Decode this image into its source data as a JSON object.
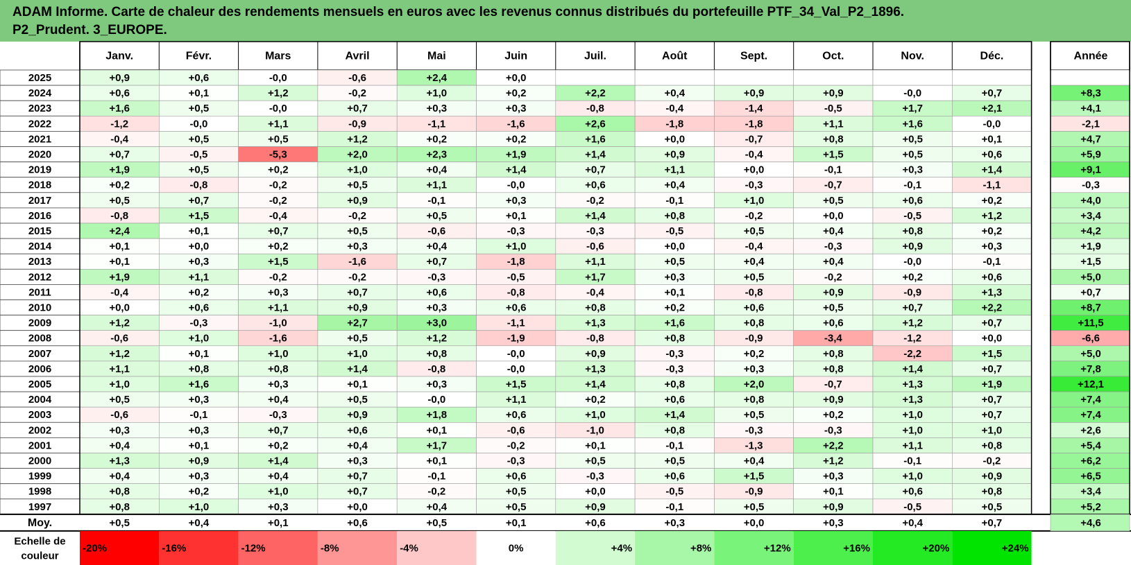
{
  "title_line1": "ADAM Informe. Carte de chaleur des rendements mensuels en euros avec les revenus connus distribués du portefeuille PTF_34_Val_P2_1896.",
  "title_line2": "P2_Prudent. 3_EUROPE.",
  "chart_data": {
    "type": "heatmap",
    "months": [
      "Janv.",
      "Févr.",
      "Mars",
      "Avril",
      "Mai",
      "Juin",
      "Juil.",
      "Août",
      "Sept.",
      "Oct.",
      "Nov.",
      "Déc."
    ],
    "annual_label": "Année",
    "rows": [
      {
        "year": "2025",
        "values": [
          "+0,9",
          "+0,6",
          "-0,0",
          "-0,6",
          "+2,4",
          "+0,0",
          "",
          "",
          "",
          "",
          "",
          ""
        ],
        "annual": ""
      },
      {
        "year": "2024",
        "values": [
          "+0,6",
          "+0,1",
          "+1,2",
          "-0,2",
          "+1,0",
          "+0,2",
          "+2,2",
          "+0,4",
          "+0,9",
          "+0,9",
          "-0,0",
          "+0,7"
        ],
        "annual": "+8,3"
      },
      {
        "year": "2023",
        "values": [
          "+1,6",
          "+0,5",
          "-0,0",
          "+0,7",
          "+0,3",
          "+0,3",
          "-0,8",
          "-0,4",
          "-1,4",
          "-0,5",
          "+1,7",
          "+2,1"
        ],
        "annual": "+4,1"
      },
      {
        "year": "2022",
        "values": [
          "-1,2",
          "-0,0",
          "+1,1",
          "-0,9",
          "-1,1",
          "-1,6",
          "+2,6",
          "-1,8",
          "-1,8",
          "+1,1",
          "+1,6",
          "-0,0"
        ],
        "annual": "-2,1"
      },
      {
        "year": "2021",
        "values": [
          "-0,4",
          "+0,5",
          "+0,5",
          "+1,2",
          "+0,2",
          "+0,2",
          "+1,6",
          "+0,0",
          "-0,7",
          "+0,8",
          "+0,5",
          "+0,1"
        ],
        "annual": "+4,7"
      },
      {
        "year": "2020",
        "values": [
          "+0,7",
          "-0,5",
          "-5,3",
          "+2,0",
          "+2,3",
          "+1,9",
          "+1,4",
          "+0,9",
          "-0,4",
          "+1,5",
          "+0,5",
          "+0,6"
        ],
        "annual": "+5,9"
      },
      {
        "year": "2019",
        "values": [
          "+1,9",
          "+0,5",
          "+0,2",
          "+1,0",
          "+0,4",
          "+1,4",
          "+0,7",
          "+1,1",
          "+0,0",
          "-0,1",
          "+0,3",
          "+1,4"
        ],
        "annual": "+9,1"
      },
      {
        "year": "2018",
        "values": [
          "+0,2",
          "-0,8",
          "-0,2",
          "+0,5",
          "+1,1",
          "-0,0",
          "+0,6",
          "+0,4",
          "-0,3",
          "-0,7",
          "-0,1",
          "-1,1"
        ],
        "annual": "-0,3"
      },
      {
        "year": "2017",
        "values": [
          "+0,5",
          "+0,7",
          "-0,2",
          "+0,9",
          "-0,1",
          "+0,3",
          "-0,2",
          "-0,1",
          "+1,0",
          "+0,5",
          "+0,6",
          "+0,2"
        ],
        "annual": "+4,0"
      },
      {
        "year": "2016",
        "values": [
          "-0,8",
          "+1,5",
          "-0,4",
          "-0,2",
          "+0,5",
          "+0,1",
          "+1,4",
          "+0,8",
          "-0,2",
          "+0,0",
          "-0,5",
          "+1,2"
        ],
        "annual": "+3,4"
      },
      {
        "year": "2015",
        "values": [
          "+2,4",
          "+0,1",
          "+0,7",
          "+0,5",
          "-0,6",
          "-0,3",
          "-0,3",
          "-0,5",
          "+0,5",
          "+0,4",
          "+0,8",
          "+0,2"
        ],
        "annual": "+4,2"
      },
      {
        "year": "2014",
        "values": [
          "+0,1",
          "+0,0",
          "+0,2",
          "+0,3",
          "+0,4",
          "+1,0",
          "-0,6",
          "+0,0",
          "-0,4",
          "-0,3",
          "+0,9",
          "+0,3"
        ],
        "annual": "+1,9"
      },
      {
        "year": "2013",
        "values": [
          "+0,1",
          "+0,3",
          "+1,5",
          "-1,6",
          "+0,7",
          "-1,8",
          "+1,1",
          "+0,5",
          "+0,4",
          "+0,4",
          "-0,0",
          "-0,1"
        ],
        "annual": "+1,5"
      },
      {
        "year": "2012",
        "values": [
          "+1,9",
          "+1,1",
          "-0,2",
          "-0,2",
          "-0,3",
          "-0,5",
          "+1,7",
          "+0,3",
          "+0,5",
          "-0,2",
          "+0,2",
          "+0,6"
        ],
        "annual": "+5,0"
      },
      {
        "year": "2011",
        "values": [
          "-0,4",
          "+0,2",
          "+0,3",
          "+0,7",
          "+0,6",
          "-0,8",
          "-0,4",
          "+0,1",
          "-0,8",
          "+0,9",
          "-0,9",
          "+1,3"
        ],
        "annual": "+0,7"
      },
      {
        "year": "2010",
        "values": [
          "+0,0",
          "+0,6",
          "+1,1",
          "+0,9",
          "+0,3",
          "+0,6",
          "+0,8",
          "+0,2",
          "+0,6",
          "+0,5",
          "+0,7",
          "+2,2"
        ],
        "annual": "+8,7"
      },
      {
        "year": "2009",
        "values": [
          "+1,2",
          "-0,3",
          "-1,0",
          "+2,7",
          "+3,0",
          "-1,1",
          "+1,3",
          "+1,6",
          "+0,8",
          "+0,6",
          "+1,2",
          "+0,7"
        ],
        "annual": "+11,5"
      },
      {
        "year": "2008",
        "values": [
          "-0,6",
          "+1,0",
          "-1,6",
          "+0,5",
          "+1,2",
          "-1,9",
          "-0,8",
          "+0,8",
          "-0,9",
          "-3,4",
          "-1,2",
          "+0,0"
        ],
        "annual": "-6,6"
      },
      {
        "year": "2007",
        "values": [
          "+1,2",
          "+0,1",
          "+1,0",
          "+1,0",
          "+0,8",
          "-0,0",
          "+0,9",
          "-0,3",
          "+0,2",
          "+0,8",
          "-2,2",
          "+1,5"
        ],
        "annual": "+5,0"
      },
      {
        "year": "2006",
        "values": [
          "+1,1",
          "+0,8",
          "+0,8",
          "+1,4",
          "-0,8",
          "-0,0",
          "+1,3",
          "-0,3",
          "+0,3",
          "+0,8",
          "+1,4",
          "+0,7"
        ],
        "annual": "+7,8"
      },
      {
        "year": "2005",
        "values": [
          "+1,0",
          "+1,6",
          "+0,3",
          "+0,1",
          "+0,3",
          "+1,5",
          "+1,4",
          "+0,8",
          "+2,0",
          "-0,7",
          "+1,3",
          "+1,9"
        ],
        "annual": "+12,1"
      },
      {
        "year": "2004",
        "values": [
          "+0,5",
          "+0,3",
          "+0,4",
          "+0,5",
          "-0,0",
          "+1,1",
          "+0,2",
          "+0,6",
          "+0,8",
          "+0,9",
          "+1,3",
          "+0,7"
        ],
        "annual": "+7,4"
      },
      {
        "year": "2003",
        "values": [
          "-0,6",
          "-0,1",
          "-0,3",
          "+0,9",
          "+1,8",
          "+0,6",
          "+1,0",
          "+1,4",
          "+0,5",
          "+0,2",
          "+1,0",
          "+0,7"
        ],
        "annual": "+7,4"
      },
      {
        "year": "2002",
        "values": [
          "+0,3",
          "+0,3",
          "+0,7",
          "+0,6",
          "+0,1",
          "-0,6",
          "-1,0",
          "+0,8",
          "-0,3",
          "-0,3",
          "+1,0",
          "+1,0"
        ],
        "annual": "+2,6"
      },
      {
        "year": "2001",
        "values": [
          "+0,4",
          "+0,1",
          "+0,2",
          "+0,4",
          "+1,7",
          "-0,2",
          "+0,1",
          "-0,1",
          "-1,3",
          "+2,2",
          "+1,1",
          "+0,8"
        ],
        "annual": "+5,4"
      },
      {
        "year": "2000",
        "values": [
          "+1,3",
          "+0,9",
          "+1,4",
          "+0,3",
          "+0,1",
          "-0,3",
          "+0,5",
          "+0,5",
          "+0,4",
          "+1,2",
          "-0,1",
          "-0,2"
        ],
        "annual": "+6,2"
      },
      {
        "year": "1999",
        "values": [
          "+0,4",
          "+0,3",
          "+0,4",
          "+0,7",
          "-0,1",
          "+0,6",
          "-0,3",
          "+0,6",
          "+1,5",
          "+0,3",
          "+1,0",
          "+0,9"
        ],
        "annual": "+6,5"
      },
      {
        "year": "1998",
        "values": [
          "+0,8",
          "+0,2",
          "+1,0",
          "+0,7",
          "-0,2",
          "+0,5",
          "+0,0",
          "-0,5",
          "-0,9",
          "+0,1",
          "+0,6",
          "+0,8"
        ],
        "annual": "+3,4"
      },
      {
        "year": "1997",
        "values": [
          "+0,8",
          "+1,0",
          "+0,3",
          "+0,0",
          "+0,4",
          "+0,5",
          "+0,9",
          "-0,1",
          "+0,5",
          "+0,9",
          "-0,5",
          "+0,5"
        ],
        "annual": "+5,2"
      }
    ],
    "average": {
      "label": "Moy.",
      "values": [
        "+0,5",
        "+0,4",
        "+0,1",
        "+0,6",
        "+0,5",
        "+0,1",
        "+0,6",
        "+0,3",
        "+0,0",
        "+0,3",
        "+0,4",
        "+0,7"
      ],
      "annual": "+4,6"
    },
    "color_scale": {
      "label_line1": "Echelle de",
      "label_line2": "couleur",
      "steps": [
        {
          "label": "-20%",
          "color": "#ff0000"
        },
        {
          "label": "-16%",
          "color": "#ff3232"
        },
        {
          "label": "-12%",
          "color": "#ff6464"
        },
        {
          "label": "-8%",
          "color": "#ff9696"
        },
        {
          "label": "-4%",
          "color": "#ffc8c8"
        },
        {
          "label": "0%",
          "color": "#ffffff"
        },
        {
          "label": "+4%",
          "color": "#d2fbd2"
        },
        {
          "label": "+8%",
          "color": "#a8f7a8"
        },
        {
          "label": "+12%",
          "color": "#7af37a"
        },
        {
          "label": "+16%",
          "color": "#4cef4c"
        },
        {
          "label": "+20%",
          "color": "#24ea24"
        },
        {
          "label": "+24%",
          "color": "#00e400"
        }
      ]
    }
  }
}
